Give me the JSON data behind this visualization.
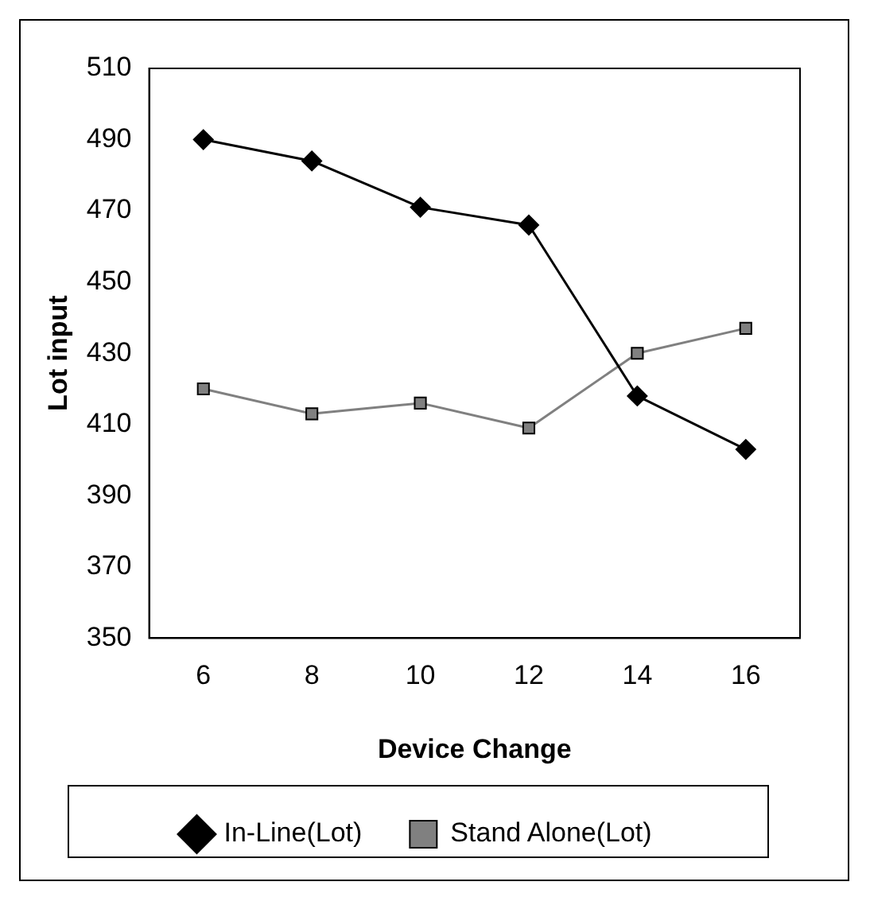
{
  "chart_data": {
    "type": "line",
    "xlabel": "Device Change",
    "ylabel": "Lot input",
    "categories": [
      "6",
      "8",
      "10",
      "12",
      "14",
      "16"
    ],
    "series": [
      {
        "name": "In-Line(Lot)",
        "color": "#000000",
        "marker": "diamond",
        "values": [
          490,
          484,
          471,
          466,
          418,
          403
        ]
      },
      {
        "name": "Stand Alone(Lot)",
        "color": "#808080",
        "marker": "square",
        "values": [
          420,
          413,
          416,
          409,
          430,
          437
        ]
      }
    ],
    "ylim": [
      350,
      510
    ],
    "yticks": [
      350,
      370,
      390,
      410,
      430,
      450,
      470,
      490,
      510
    ],
    "grid": false,
    "legend": "bottom",
    "line_style": "solid"
  }
}
